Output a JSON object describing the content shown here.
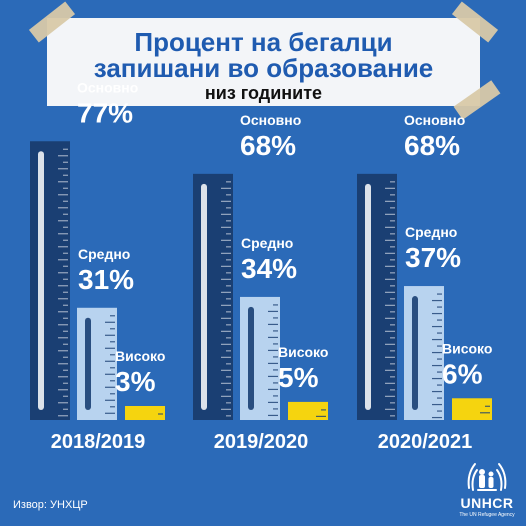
{
  "header": {
    "title_line1": "Процент на бегалци",
    "title_line2": "запишани во образование",
    "subtitle": "низ годините"
  },
  "source": "Извор: УНХЦР",
  "logo": {
    "name": "UNHCR",
    "tagline": "The UN Refugee Agency"
  },
  "colors": {
    "background": "#2b6ab8",
    "primary": "#1a3f73",
    "secondary": "#b8d3ef",
    "higher": "#f5d40f"
  },
  "chart_data": {
    "type": "bar",
    "categories": [
      "2018/2019",
      "2019/2020",
      "2020/2021"
    ],
    "series": [
      {
        "name": "Основно",
        "values": [
          77,
          68,
          68
        ]
      },
      {
        "name": "Средно",
        "values": [
          31,
          34,
          37
        ]
      },
      {
        "name": "Високо",
        "values": [
          3,
          5,
          6
        ]
      }
    ],
    "value_labels": [
      [
        "77%",
        "31%",
        "3%"
      ],
      [
        "68%",
        "34%",
        "5%"
      ],
      [
        "68%",
        "37%",
        "6%"
      ]
    ],
    "ylim": [
      0,
      100
    ]
  }
}
